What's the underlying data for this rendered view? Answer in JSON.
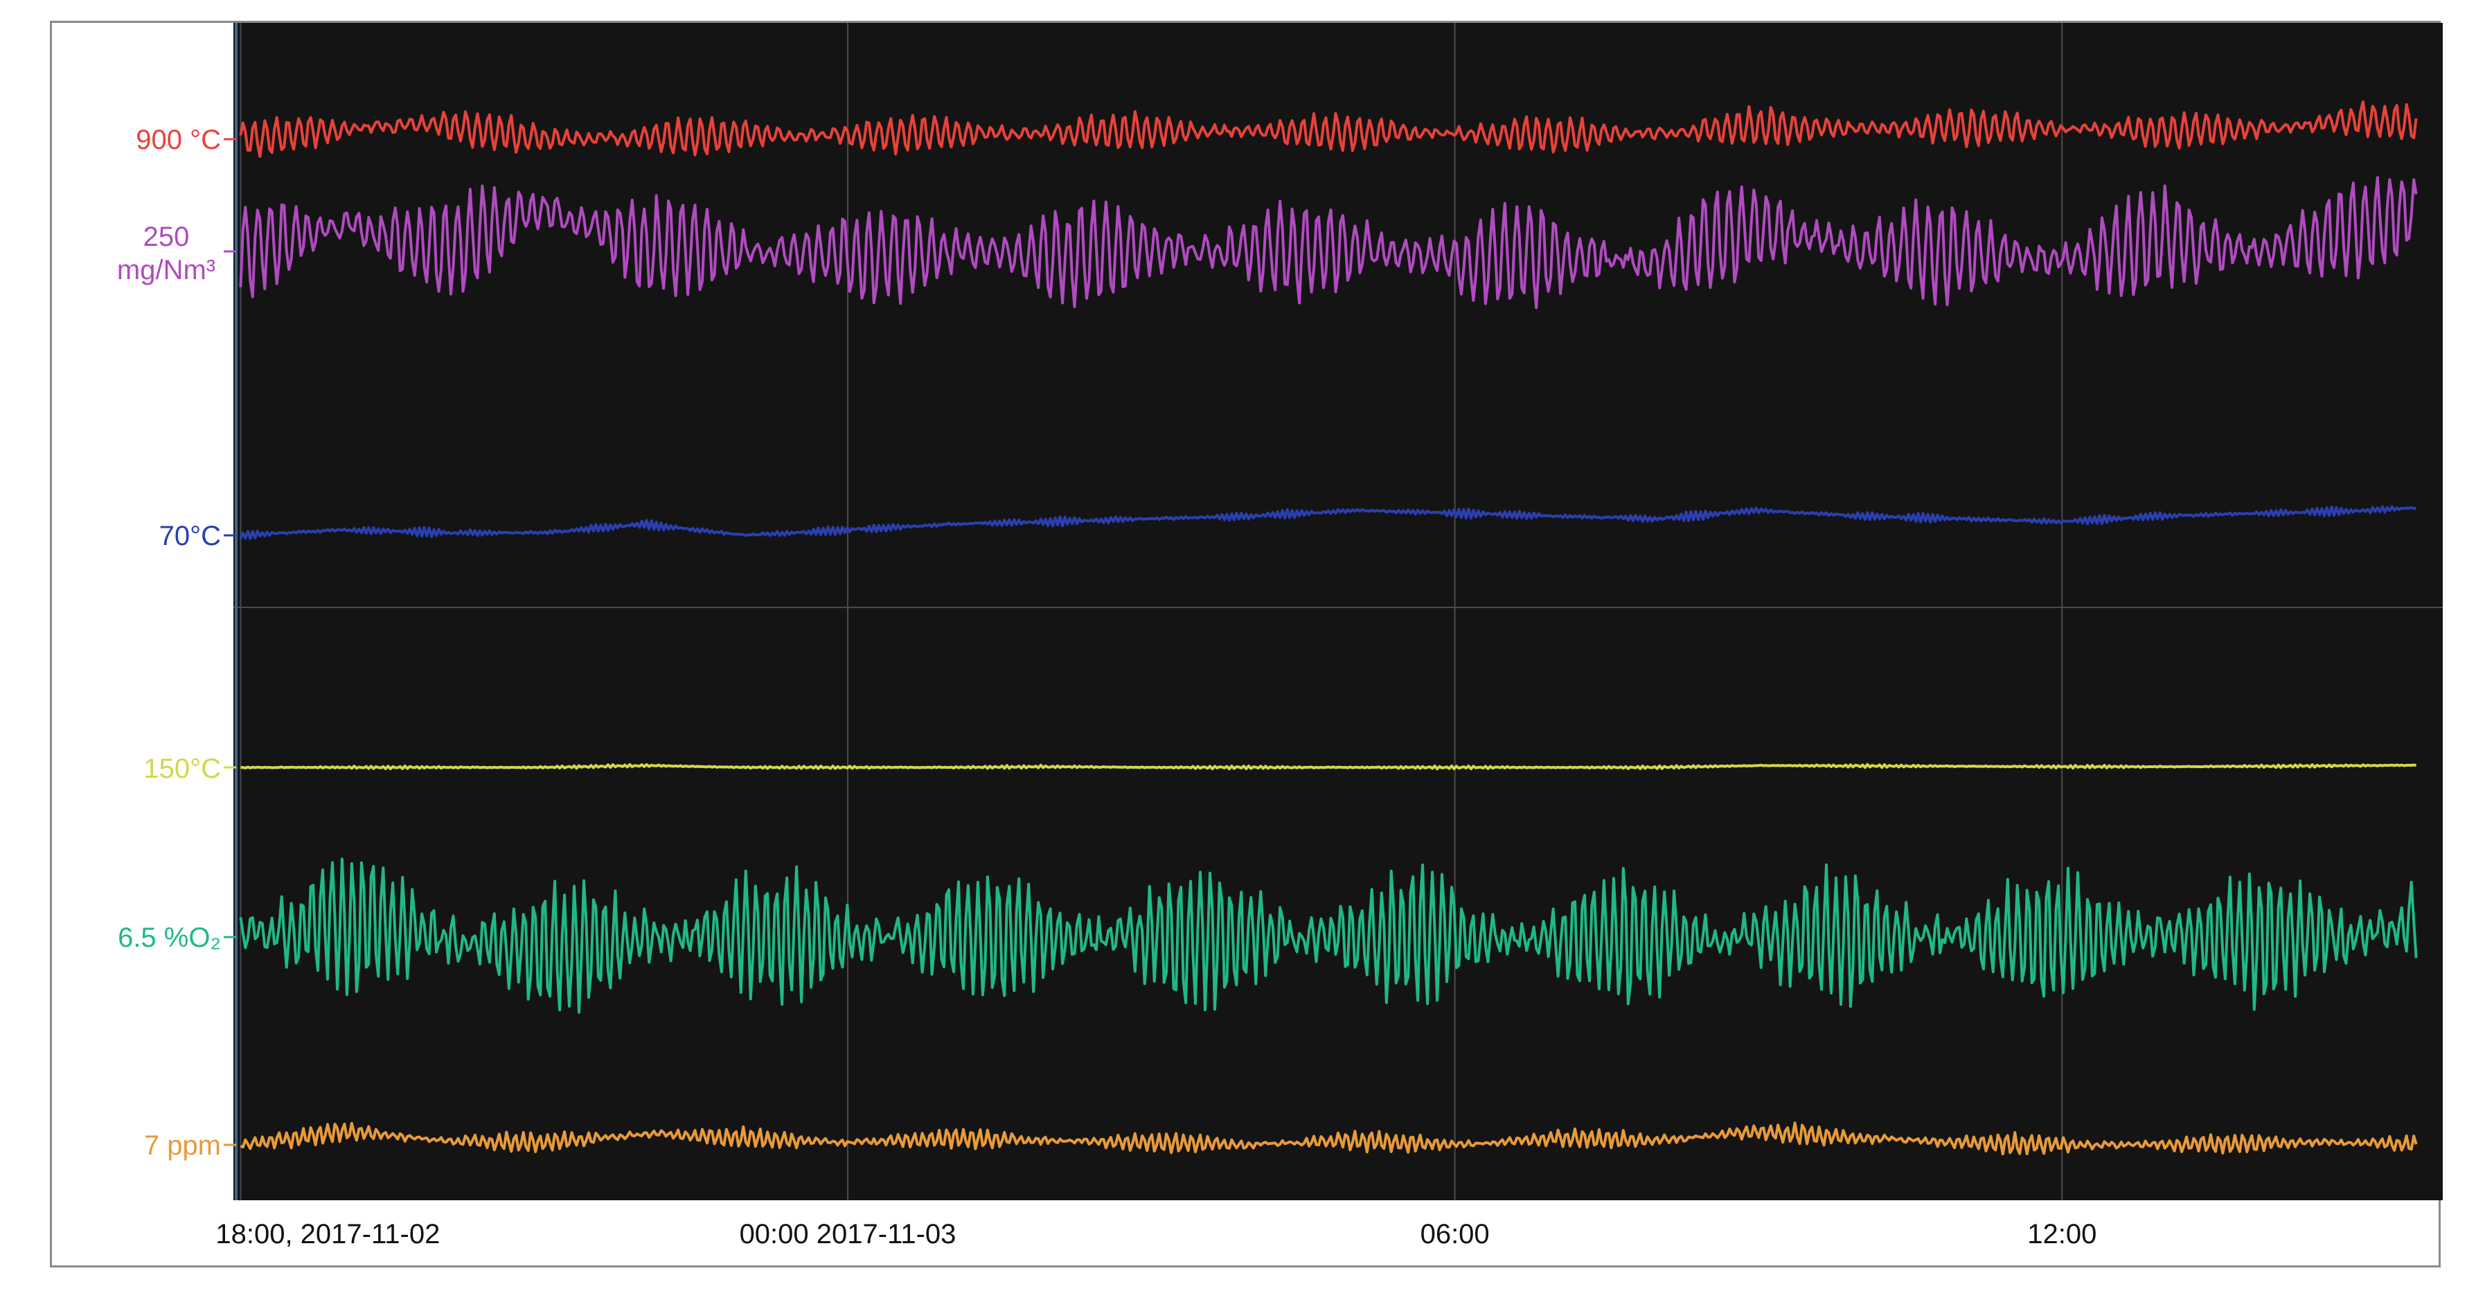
{
  "chart_data": {
    "type": "line",
    "background": "#141414",
    "grid": true,
    "x_ticks": [
      "18:00, 2017-11-02",
      "00:00 2017-11-03",
      "06:00",
      "12:00"
    ],
    "x_range": [
      "2017-11-02 17:50",
      "2017-11-03 15:40"
    ],
    "series": [
      {
        "label": "900 °C",
        "color": "#e8423a",
        "reference_value": "900 °C",
        "x": [
          "18:00",
          "19:00",
          "20:00",
          "21:00",
          "22:00",
          "23:00",
          "00:00",
          "01:00",
          "02:00",
          "03:00",
          "04:00",
          "05:00",
          "06:00",
          "07:00",
          "08:00",
          "09:00",
          "10:00",
          "11:00",
          "12:00",
          "13:00",
          "14:00",
          "15:00",
          "15:30"
        ],
        "y": [
          900,
          905,
          907,
          900,
          901,
          902,
          902,
          903,
          903,
          904,
          904,
          903,
          903,
          902,
          903,
          906,
          905,
          906,
          905,
          904,
          905,
          910,
          907
        ]
      },
      {
        "label": "250 mg/Nm³",
        "color": "#b04bc0",
        "reference_value": "250 mg/Nm³",
        "x": [
          "18:00",
          "19:00",
          "20:00",
          "21:00",
          "22:00",
          "23:00",
          "00:00",
          "01:00",
          "02:00",
          "03:00",
          "04:00",
          "05:00",
          "06:00",
          "07:00",
          "08:00",
          "09:00",
          "10:00",
          "11:00",
          "12:00",
          "13:00",
          "14:00",
          "15:00",
          "15:30"
        ],
        "y": [
          250,
          262,
          250,
          270,
          252,
          250,
          248,
          250,
          248,
          252,
          250,
          252,
          246,
          248,
          245,
          262,
          252,
          250,
          246,
          256,
          250,
          262,
          268
        ]
      },
      {
        "label": "70°C",
        "color": "#2a3fb0",
        "reference_value": "70°C",
        "x": [
          "18:00",
          "19:00",
          "20:00",
          "21:00",
          "22:00",
          "23:00",
          "00:00",
          "01:00",
          "02:00",
          "03:00",
          "04:00",
          "05:00",
          "06:00",
          "07:00",
          "08:00",
          "09:00",
          "10:00",
          "11:00",
          "12:00",
          "13:00",
          "14:00",
          "15:00",
          "15:30"
        ],
        "y": [
          70,
          72,
          71,
          71,
          74,
          70,
          72,
          74,
          75,
          76,
          77,
          79,
          78,
          77,
          76,
          79,
          77,
          76,
          75,
          77,
          78,
          79,
          80
        ]
      },
      {
        "label": "150°C",
        "color": "#d2d84a",
        "reference_value": "150°C",
        "x": [
          "18:00",
          "19:00",
          "20:00",
          "21:00",
          "22:00",
          "23:00",
          "00:00",
          "01:00",
          "02:00",
          "03:00",
          "04:00",
          "05:00",
          "06:00",
          "07:00",
          "08:00",
          "09:00",
          "10:00",
          "11:00",
          "12:00",
          "13:00",
          "14:00",
          "15:00",
          "15:30"
        ],
        "y": [
          150,
          150,
          150,
          150,
          150.5,
          150,
          150,
          150,
          150.2,
          150,
          150,
          150,
          150,
          150,
          150,
          150.5,
          150.4,
          150.3,
          150.2,
          150.2,
          150.3,
          150.5,
          150.6
        ]
      },
      {
        "label": "6.5 %O₂",
        "color": "#20b887",
        "reference_value": "6.5 %O₂",
        "x": [
          "18:00",
          "19:00",
          "20:00",
          "21:00",
          "22:00",
          "23:00",
          "00:00",
          "01:00",
          "02:00",
          "03:00",
          "04:00",
          "05:00",
          "06:00",
          "07:00",
          "08:00",
          "09:00",
          "10:00",
          "11:00",
          "12:00",
          "13:00",
          "14:00",
          "15:00",
          "15:30"
        ],
        "y": [
          6.5,
          6.6,
          6.5,
          6.4,
          6.5,
          6.5,
          6.5,
          6.5,
          6.5,
          6.5,
          6.5,
          6.5,
          6.5,
          6.5,
          6.5,
          6.5,
          6.5,
          6.5,
          6.5,
          6.5,
          6.5,
          6.5,
          6.6
        ]
      },
      {
        "label": "7 ppm",
        "color": "#e89a3a",
        "reference_value": "7 ppm",
        "x": [
          "18:00",
          "19:00",
          "20:00",
          "21:00",
          "22:00",
          "23:00",
          "00:00",
          "01:00",
          "02:00",
          "03:00",
          "04:00",
          "05:00",
          "06:00",
          "07:00",
          "08:00",
          "09:00",
          "10:00",
          "11:00",
          "12:00",
          "13:00",
          "14:00",
          "15:00",
          "15:30"
        ],
        "y": [
          7,
          7.6,
          7.2,
          7.1,
          7.5,
          7.3,
          7.1,
          7.3,
          7.2,
          7.1,
          7.0,
          7.2,
          7.0,
          7.3,
          7.2,
          7.6,
          7.3,
          7.1,
          7.0,
          7.0,
          7.1,
          7.1,
          7.0
        ]
      }
    ]
  }
}
